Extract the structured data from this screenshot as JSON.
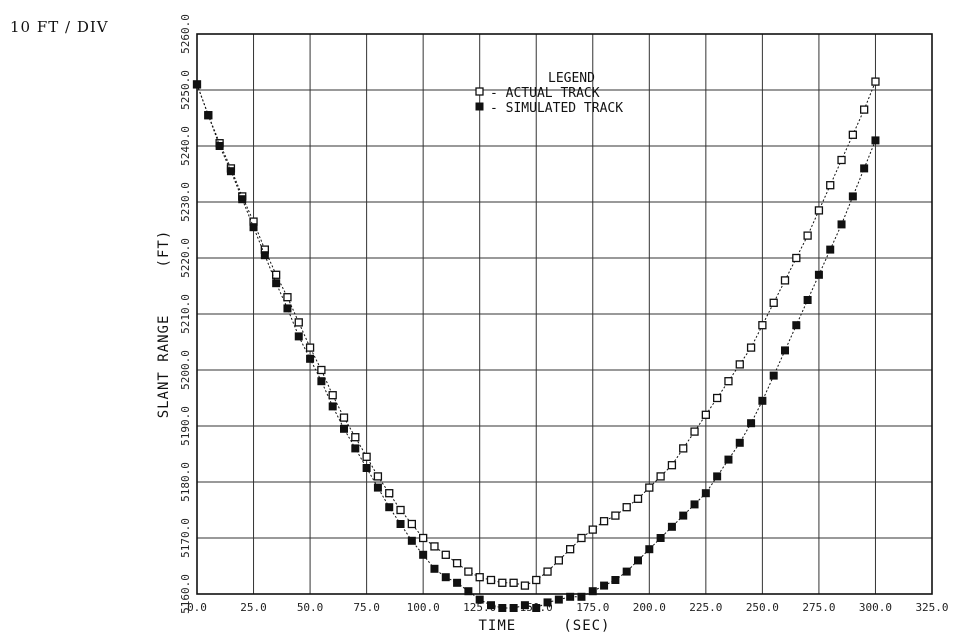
{
  "scale_note": "10 FT / DIV",
  "chart_data": {
    "type": "scatter",
    "xlabel": "TIME     (SEC)",
    "ylabel": "SLANT RANGE     (FT)",
    "xlim": [
      0,
      325
    ],
    "ylim": [
      5160,
      5260
    ],
    "x_ticks": [
      0,
      25,
      50,
      75,
      100,
      125,
      150,
      175,
      200,
      225,
      250,
      275,
      300,
      325
    ],
    "x_tick_labels": [
      "0.0",
      "25.0",
      "50.0",
      "75.0",
      "100.0",
      "125.0",
      "150.0",
      "175.0",
      "200.0",
      "225.0",
      "250.0",
      "275.0",
      "300.0",
      "325.0"
    ],
    "y_ticks": [
      5160,
      5170,
      5180,
      5190,
      5200,
      5210,
      5220,
      5230,
      5240,
      5250,
      5260
    ],
    "y_tick_labels": [
      "5160.0",
      "5170.0",
      "5180.0",
      "5190.0",
      "5200.0",
      "5210.0",
      "5220.0",
      "5230.0",
      "5240.0",
      "5250.0",
      "5260.0"
    ],
    "grid": true,
    "legend": {
      "title": "LEGEND",
      "position": "top-center",
      "entries": [
        "- ACTUAL TRACK",
        "- SIMULATED TRACK"
      ]
    },
    "series": [
      {
        "name": "ACTUAL TRACK",
        "marker": "open-square",
        "color": "#111111",
        "x": [
          0,
          5,
          10,
          15,
          20,
          25,
          30,
          35,
          40,
          45,
          50,
          55,
          60,
          65,
          70,
          75,
          80,
          85,
          90,
          95,
          100,
          105,
          110,
          115,
          120,
          125,
          130,
          135,
          140,
          145,
          150,
          155,
          160,
          165,
          170,
          175,
          180,
          185,
          190,
          195,
          200,
          205,
          210,
          215,
          220,
          225,
          230,
          235,
          240,
          245,
          250,
          255,
          260,
          265,
          270,
          275,
          280,
          285,
          290,
          295,
          300
        ],
        "y": [
          5251.0,
          5245.5,
          5240.5,
          5236.0,
          5231.0,
          5226.5,
          5221.5,
          5217.0,
          5213.0,
          5208.5,
          5204.0,
          5200.0,
          5195.5,
          5191.5,
          5188.0,
          5184.5,
          5181.0,
          5178.0,
          5175.0,
          5172.5,
          5170.0,
          5168.5,
          5167.0,
          5165.5,
          5164.0,
          5163.0,
          5162.5,
          5162.0,
          5162.0,
          5161.5,
          5162.5,
          5164.0,
          5166.0,
          5168.0,
          5170.0,
          5171.5,
          5173.0,
          5174.0,
          5175.5,
          5177.0,
          5179.0,
          5181.0,
          5183.0,
          5186.0,
          5189.0,
          5192.0,
          5195.0,
          5198.0,
          5201.0,
          5204.0,
          5208.0,
          5212.0,
          5216.0,
          5220.0,
          5224.0,
          5228.5,
          5233.0,
          5237.5,
          5242.0,
          5246.5,
          5251.5
        ]
      },
      {
        "name": "SIMULATED TRACK",
        "marker": "filled-square",
        "color": "#111111",
        "x": [
          0,
          5,
          10,
          15,
          20,
          25,
          30,
          35,
          40,
          45,
          50,
          55,
          60,
          65,
          70,
          75,
          80,
          85,
          90,
          95,
          100,
          105,
          110,
          115,
          120,
          125,
          130,
          135,
          140,
          145,
          150,
          155,
          160,
          165,
          170,
          175,
          180,
          185,
          190,
          195,
          200,
          205,
          210,
          215,
          220,
          225,
          230,
          235,
          240,
          245,
          250,
          255,
          260,
          265,
          270,
          275,
          280,
          285,
          290,
          295,
          300
        ],
        "y": [
          5251.0,
          5245.5,
          5240.0,
          5235.5,
          5230.5,
          5225.5,
          5220.5,
          5215.5,
          5211.0,
          5206.0,
          5202.0,
          5198.0,
          5193.5,
          5189.5,
          5186.0,
          5182.5,
          5179.0,
          5175.5,
          5172.5,
          5169.5,
          5167.0,
          5164.5,
          5163.0,
          5162.0,
          5160.5,
          5159.0,
          5158.0,
          5157.5,
          5157.5,
          5158.0,
          5157.5,
          5158.5,
          5159.0,
          5159.5,
          5159.5,
          5160.5,
          5161.5,
          5162.5,
          5164.0,
          5166.0,
          5168.0,
          5170.0,
          5172.0,
          5174.0,
          5176.0,
          5178.0,
          5181.0,
          5184.0,
          5187.0,
          5190.5,
          5194.5,
          5199.0,
          5203.5,
          5208.0,
          5212.5,
          5217.0,
          5221.5,
          5226.0,
          5231.0,
          5236.0,
          5241.0
        ]
      }
    ]
  }
}
